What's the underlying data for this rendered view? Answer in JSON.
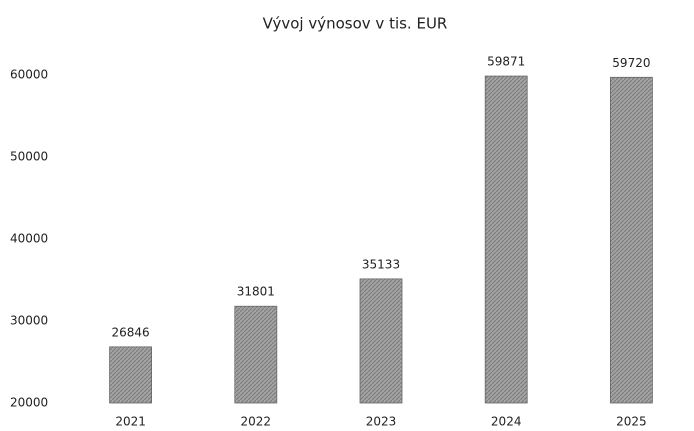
{
  "chart_data": {
    "type": "bar",
    "title": "Vývoj výnosov v tis. EUR",
    "categories": [
      "2021",
      "2022",
      "2023",
      "2024",
      "2025"
    ],
    "values": [
      26846,
      31801,
      35133,
      59871,
      59720
    ],
    "color": "#a3a3a3",
    "ylim": [
      20000,
      60000
    ],
    "yticks": [
      20000,
      30000,
      40000,
      50000,
      60000
    ],
    "grid": false
  }
}
